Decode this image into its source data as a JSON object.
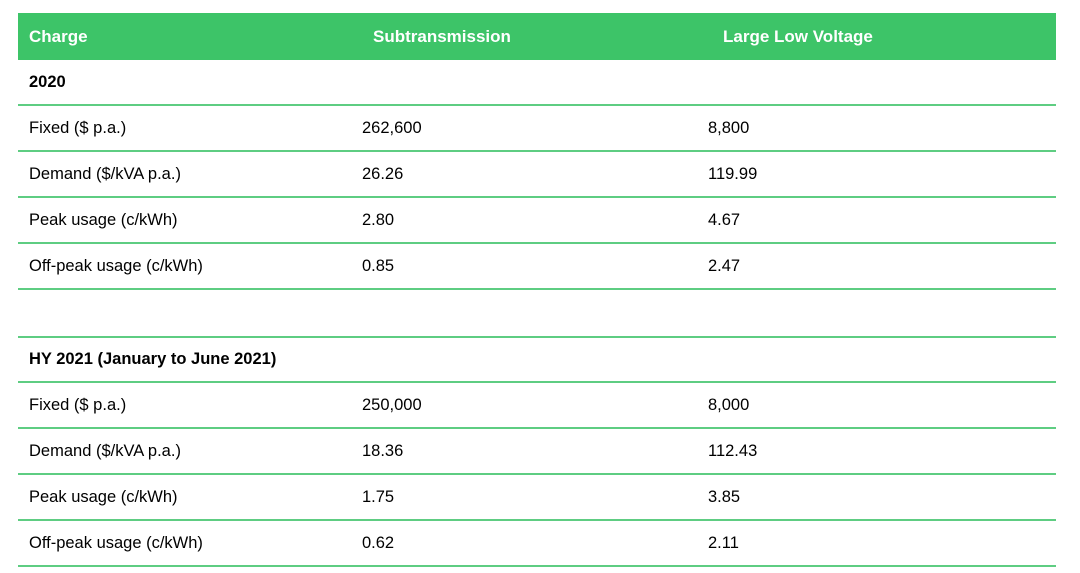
{
  "table": {
    "columns": [
      {
        "label": "Charge"
      },
      {
        "label": "Subtransmission"
      },
      {
        "label": "Large Low Voltage"
      }
    ],
    "sections": [
      {
        "title": "2020",
        "rows": [
          {
            "charge": "Fixed ($ p.a.)",
            "subtransmission": "262,600",
            "large_low_voltage": "8,800"
          },
          {
            "charge": "Demand ($/kVA p.a.)",
            "subtransmission": "26.26",
            "large_low_voltage": "119.99"
          },
          {
            "charge": "Peak usage (c/kWh)",
            "subtransmission": "2.80",
            "large_low_voltage": "4.67"
          },
          {
            "charge": "Off-peak usage (c/kWh)",
            "subtransmission": "0.85",
            "large_low_voltage": "2.47"
          }
        ]
      },
      {
        "title": "HY 2021 (January to June 2021)",
        "rows": [
          {
            "charge": "Fixed ($ p.a.)",
            "subtransmission": "250,000",
            "large_low_voltage": "8,000"
          },
          {
            "charge": "Demand ($/kVA p.a.)",
            "subtransmission": "18.36",
            "large_low_voltage": "112.43"
          },
          {
            "charge": "Peak usage (c/kWh)",
            "subtransmission": "1.75",
            "large_low_voltage": "3.85"
          },
          {
            "charge": "Off-peak usage (c/kWh)",
            "subtransmission": "0.62",
            "large_low_voltage": "2.11"
          }
        ]
      }
    ],
    "colors": {
      "header_bg": "#3dc468",
      "header_text": "#ffffff",
      "row_border": "#5ecd82",
      "body_text": "#000000"
    }
  }
}
